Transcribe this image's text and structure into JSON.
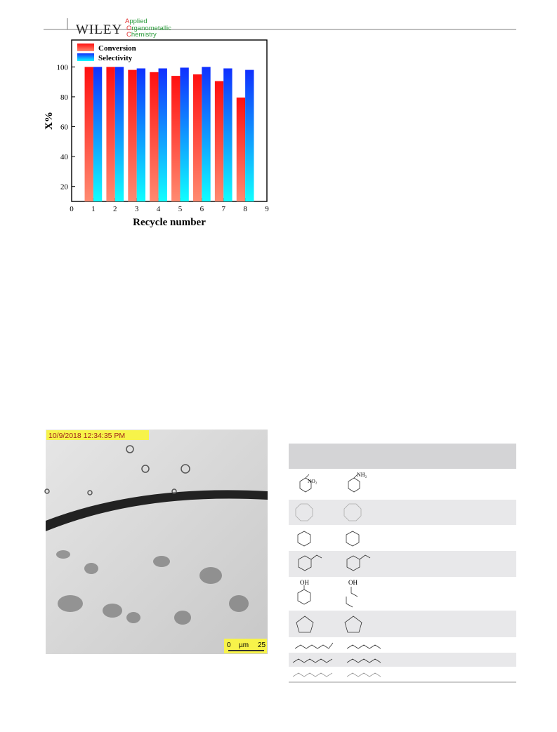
{
  "header": {
    "publisher": "WILEY",
    "journal": [
      "Applied",
      "Organometallic",
      "Chemistry"
    ]
  },
  "chart_data": {
    "type": "bar",
    "xlabel": "Recycle number",
    "ylabel": "X%",
    "x": [
      1,
      2,
      3,
      4,
      5,
      6,
      7,
      8
    ],
    "series": [
      {
        "name": "Conversion",
        "color": "#e8141e",
        "values": [
          100,
          100,
          98,
          96.5,
          94,
          95,
          90.5,
          79.5
        ]
      },
      {
        "name": "Selectivity",
        "color": "#1a3cff",
        "values": [
          100,
          100,
          99,
          99,
          99.5,
          100,
          99,
          98
        ]
      }
    ],
    "xlim": [
      0,
      9
    ],
    "xticks": [
      0,
      1,
      2,
      3,
      4,
      5,
      6,
      7,
      8,
      9
    ],
    "ylim": [
      10,
      118
    ],
    "yticks": [
      20,
      40,
      60,
      80,
      100
    ],
    "legend": "upper left"
  },
  "micrograph": {
    "timestamp": "10/9/2018 12:34:35 PM",
    "scale_bar": [
      "0",
      "µm",
      "25"
    ]
  },
  "table": {
    "structure_labels": [
      "NO₂",
      "NH₂",
      "OH",
      "OH"
    ]
  }
}
